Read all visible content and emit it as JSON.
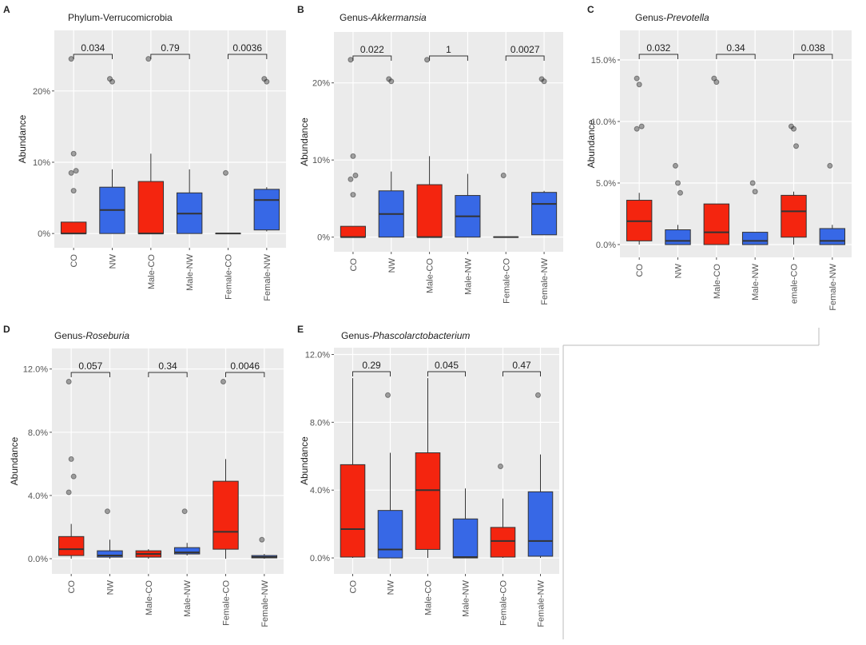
{
  "chart_data": [
    {
      "type": "box",
      "panel_label": "A",
      "title": "Phylum-Verrucomicrobia",
      "ylabel": "Abundance",
      "categories": [
        "CO",
        "NW",
        "Male-CO",
        "Male-NW",
        "Female-CO",
        "Female-NW"
      ],
      "colors": [
        "#f4250f",
        "#3768e6",
        "#f4250f",
        "#3768e6",
        "#f4250f",
        "#3768e6"
      ],
      "boxes": [
        {
          "min": 0,
          "q1": 0,
          "median": 0,
          "q3": 1.6,
          "max": 1.6,
          "outliers": [
            24.5,
            11.2,
            8.8,
            8.5,
            6
          ]
        },
        {
          "min": 0,
          "q1": 0,
          "median": 3.3,
          "q3": 6.5,
          "max": 9,
          "outliers": [
            21.7,
            21.3
          ]
        },
        {
          "min": 0,
          "q1": 0,
          "median": 0,
          "q3": 7.3,
          "max": 11.2,
          "outliers": [
            24.5
          ]
        },
        {
          "min": 0,
          "q1": 0,
          "median": 2.8,
          "q3": 5.7,
          "max": 9,
          "outliers": []
        },
        {
          "min": 0,
          "q1": 0,
          "median": 0,
          "q3": 0,
          "max": 0,
          "outliers": [
            8.5
          ]
        },
        {
          "min": 0.3,
          "q1": 0.5,
          "median": 4.7,
          "q3": 6.2,
          "max": 6.5,
          "outliers": [
            21.7,
            21.3
          ]
        }
      ],
      "annotations": [
        "0.034",
        "0.79",
        "0.0036"
      ],
      "ylim": [
        -2,
        28.5
      ],
      "yticks": [
        {
          "value": 0,
          "label": "0%"
        },
        {
          "value": 10,
          "label": "10%"
        },
        {
          "value": 20,
          "label": "20%"
        }
      ],
      "grid": true
    },
    {
      "type": "box",
      "panel_label": "B",
      "title": "Genus-",
      "title_italic": "Akkermansia",
      "ylabel": "Abundance",
      "categories": [
        "CO",
        "NW",
        "Male-CO",
        "Male-NW",
        "Female-CO",
        "Female-NW"
      ],
      "colors": [
        "#f4250f",
        "#3768e6",
        "#f4250f",
        "#3768e6",
        "#f4250f",
        "#3768e6"
      ],
      "boxes": [
        {
          "min": 0,
          "q1": 0,
          "median": 0,
          "q3": 1.4,
          "max": 1.4,
          "outliers": [
            23,
            10.5,
            8,
            7.5,
            5.5
          ]
        },
        {
          "min": 0,
          "q1": 0,
          "median": 3,
          "q3": 6,
          "max": 8.5,
          "outliers": [
            20.5,
            20.2
          ]
        },
        {
          "min": 0,
          "q1": 0,
          "median": 0,
          "q3": 6.8,
          "max": 10.5,
          "outliers": [
            23
          ]
        },
        {
          "min": 0,
          "q1": 0,
          "median": 2.7,
          "q3": 5.4,
          "max": 8.2,
          "outliers": []
        },
        {
          "min": 0,
          "q1": 0,
          "median": 0,
          "q3": 0,
          "max": 0,
          "outliers": [
            8
          ]
        },
        {
          "min": 0.3,
          "q1": 0.3,
          "median": 4.3,
          "q3": 5.8,
          "max": 6,
          "outliers": [
            20.5,
            20.2
          ]
        }
      ],
      "annotations": [
        "0.022",
        "1",
        "0.0027"
      ],
      "ylim": [
        -1.9,
        26.6
      ],
      "yticks": [
        {
          "value": 0,
          "label": "0%"
        },
        {
          "value": 10,
          "label": "10%"
        },
        {
          "value": 20,
          "label": "20%"
        }
      ],
      "grid": true
    },
    {
      "type": "box",
      "panel_label": "C",
      "title": "Genus-",
      "title_italic": "Prevotella",
      "ylabel": "Abundance",
      "categories": [
        "CO",
        "NW",
        "Male-CO",
        "Male-NW",
        "emale-CO",
        "Female-NW"
      ],
      "colors": [
        "#f4250f",
        "#3768e6",
        "#f4250f",
        "#3768e6",
        "#f4250f",
        "#3768e6"
      ],
      "boxes": [
        {
          "min": 0,
          "q1": 0.3,
          "median": 1.9,
          "q3": 3.6,
          "max": 4.2,
          "outliers": [
            13.5,
            13,
            9.6,
            9.4
          ]
        },
        {
          "min": 0,
          "q1": 0,
          "median": 0.3,
          "q3": 1.2,
          "max": 1.6,
          "outliers": [
            6.4,
            5,
            4.2
          ]
        },
        {
          "min": 0,
          "q1": 0,
          "median": 1,
          "q3": 3.3,
          "max": 3.3,
          "outliers": [
            13.5,
            13.2
          ]
        },
        {
          "min": 0,
          "q1": 0,
          "median": 0.3,
          "q3": 1,
          "max": 1,
          "outliers": [
            5,
            4.3
          ]
        },
        {
          "min": 0,
          "q1": 0.6,
          "median": 2.7,
          "q3": 4,
          "max": 4.3,
          "outliers": [
            9.6,
            9.4,
            8
          ]
        },
        {
          "min": 0,
          "q1": 0,
          "median": 0.3,
          "q3": 1.3,
          "max": 1.6,
          "outliers": [
            6.4
          ]
        }
      ],
      "annotations": [
        "0.032",
        "0.34",
        "0.038"
      ],
      "ylim": [
        -1.04,
        17.4
      ],
      "yticks": [
        {
          "value": 0,
          "label": "0.0%"
        },
        {
          "value": 5,
          "label": "5.0%"
        },
        {
          "value": 10,
          "label": "10.0%"
        },
        {
          "value": 15,
          "label": "15.0%"
        }
      ],
      "grid": true
    },
    {
      "type": "box",
      "panel_label": "D",
      "title": "Genus-",
      "title_italic": "Roseburia",
      "ylabel": "Abundance",
      "categories": [
        "CO",
        "NW",
        "Male-CO",
        "Male-NW",
        "Female-CO",
        "Female-NW"
      ],
      "colors": [
        "#f4250f",
        "#3768e6",
        "#f4250f",
        "#3768e6",
        "#f4250f",
        "#3768e6"
      ],
      "boxes": [
        {
          "min": 0,
          "q1": 0.2,
          "median": 0.6,
          "q3": 1.4,
          "max": 2.2,
          "outliers": [
            11.2,
            6.3,
            5.2,
            4.2
          ]
        },
        {
          "min": 0,
          "q1": 0.1,
          "median": 0.2,
          "q3": 0.5,
          "max": 1.2,
          "outliers": [
            3
          ]
        },
        {
          "min": 0,
          "q1": 0.1,
          "median": 0.3,
          "q3": 0.5,
          "max": 0.6,
          "outliers": []
        },
        {
          "min": 0.2,
          "q1": 0.3,
          "median": 0.4,
          "q3": 0.7,
          "max": 1,
          "outliers": [
            3
          ]
        },
        {
          "min": 0,
          "q1": 0.6,
          "median": 1.7,
          "q3": 4.9,
          "max": 6.3,
          "outliers": [
            11.2
          ]
        },
        {
          "min": 0,
          "q1": 0.05,
          "median": 0.1,
          "q3": 0.2,
          "max": 0.3,
          "outliers": [
            1.2
          ]
        }
      ],
      "annotations": [
        "0.057",
        "0.34",
        "0.0046"
      ],
      "ylim": [
        -0.96,
        13.3
      ],
      "yticks": [
        {
          "value": 0,
          "label": "0.0%"
        },
        {
          "value": 4,
          "label": "4.0%"
        },
        {
          "value": 8,
          "label": "8.0%"
        },
        {
          "value": 12,
          "label": "12.0%"
        }
      ],
      "grid": true
    },
    {
      "type": "box",
      "panel_label": "E",
      "title": "Genus-",
      "title_italic": "Phascolarctobacterium",
      "ylabel": "Abundance",
      "categories": [
        "CO",
        "NW",
        "Male-CO",
        "Male-NW",
        "Female-CO",
        "Female-NW"
      ],
      "colors": [
        "#f4250f",
        "#3768e6",
        "#f4250f",
        "#3768e6",
        "#f4250f",
        "#3768e6"
      ],
      "boxes": [
        {
          "min": 0,
          "q1": 0.05,
          "median": 1.7,
          "q3": 5.5,
          "max": 10.6,
          "outliers": []
        },
        {
          "min": 0,
          "q1": 0,
          "median": 0.5,
          "q3": 2.8,
          "max": 6.2,
          "outliers": [
            9.6
          ]
        },
        {
          "min": 0,
          "q1": 0.5,
          "median": 4,
          "q3": 6.2,
          "max": 10.6,
          "outliers": []
        },
        {
          "min": 0,
          "q1": 0,
          "median": 0.05,
          "q3": 2.3,
          "max": 4.1,
          "outliers": []
        },
        {
          "min": 0,
          "q1": 0.05,
          "median": 1,
          "q3": 1.8,
          "max": 3.5,
          "outliers": [
            5.4
          ]
        },
        {
          "min": 0,
          "q1": 0.1,
          "median": 1,
          "q3": 3.9,
          "max": 6.1,
          "outliers": [
            9.6
          ]
        }
      ],
      "annotations": [
        "0.29",
        "0.045",
        "0.47"
      ],
      "ylim": [
        -0.94,
        12.4
      ],
      "yticks": [
        {
          "value": 0,
          "label": "0.0%"
        },
        {
          "value": 4,
          "label": "4.0%"
        },
        {
          "value": 8,
          "label": "8.0%"
        },
        {
          "value": 12,
          "label": "12.0%"
        }
      ],
      "grid": true
    }
  ]
}
